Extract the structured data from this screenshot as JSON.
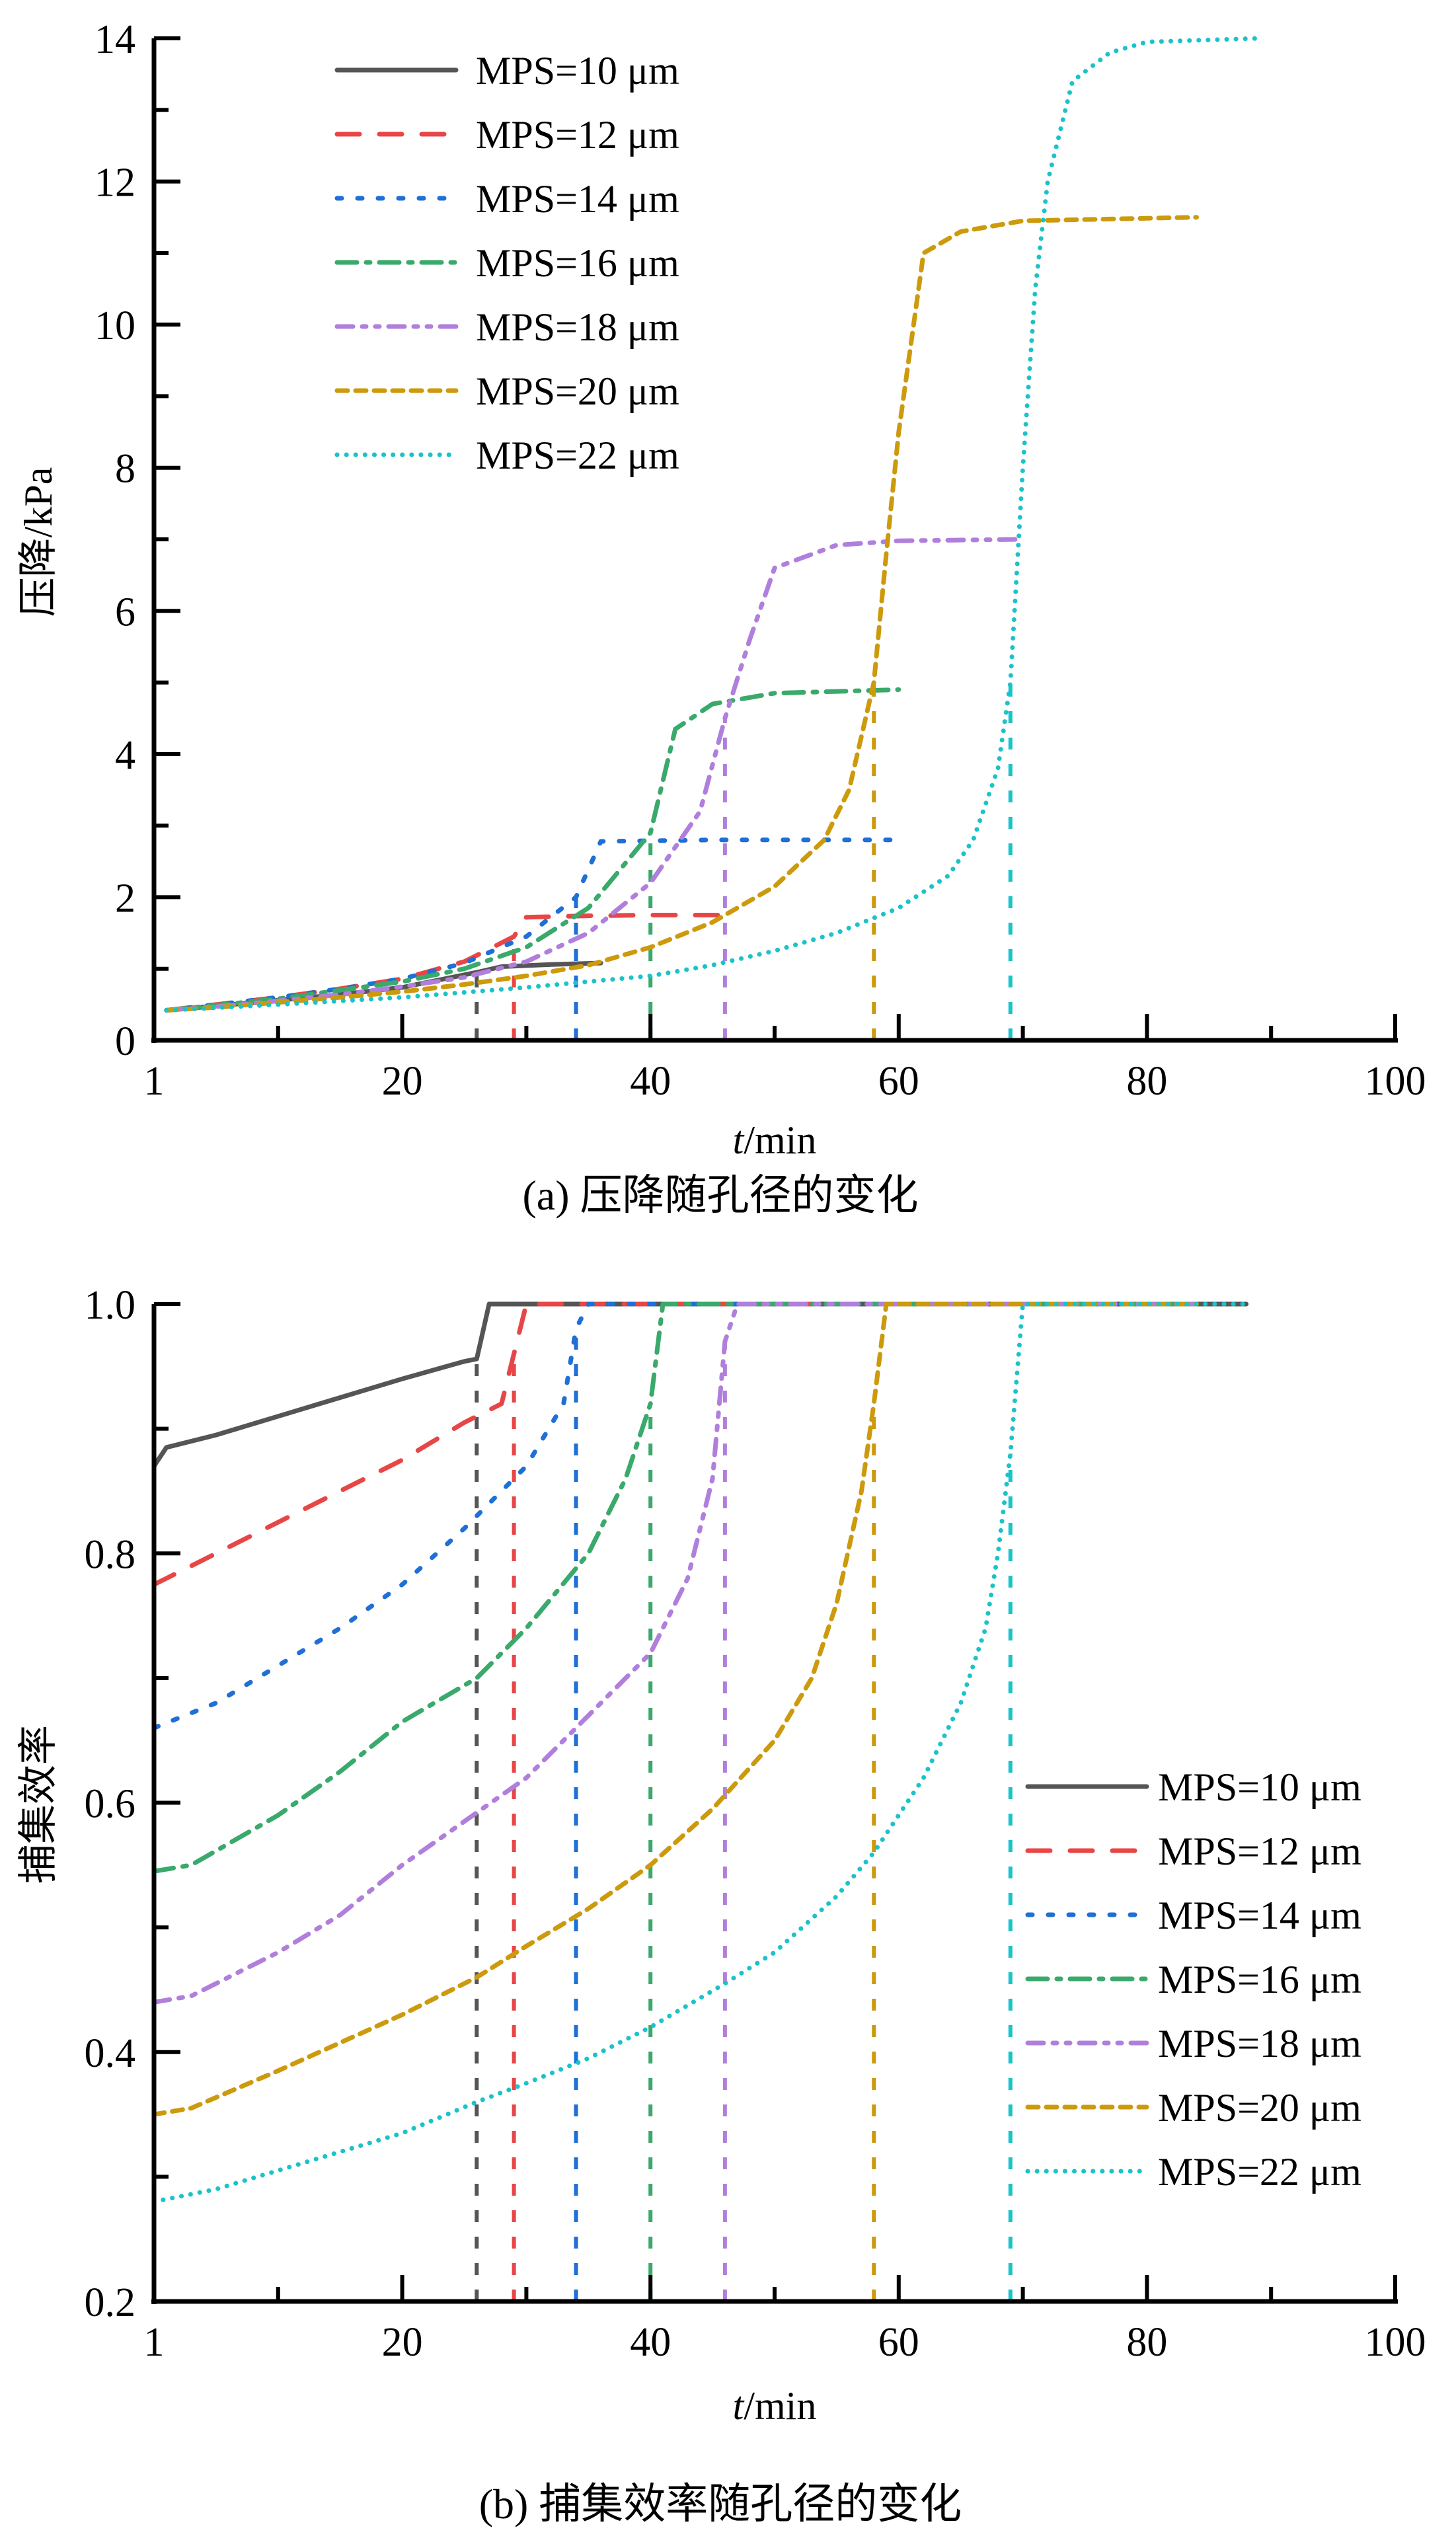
{
  "chart_data": [
    {
      "type": "line",
      "id": "a",
      "caption": "(a) 压降随孔径的变化",
      "xlabel_italic": "t",
      "xlabel_rest": "/min",
      "ylabel": "压降/kPa",
      "xlim": [
        0,
        100
      ],
      "ylim": [
        0,
        14
      ],
      "xticks": [
        {
          "v": 0,
          "label": "1"
        },
        {
          "v": 20,
          "label": "20"
        },
        {
          "v": 40,
          "label": "40"
        },
        {
          "v": 60,
          "label": "60"
        },
        {
          "v": 80,
          "label": "80"
        },
        {
          "v": 100,
          "label": "100"
        }
      ],
      "xminor": [
        10,
        30,
        50,
        70,
        90
      ],
      "yticks": [
        {
          "v": 0,
          "label": "0"
        },
        {
          "v": 2,
          "label": "2"
        },
        {
          "v": 4,
          "label": "4"
        },
        {
          "v": 6,
          "label": "6"
        },
        {
          "v": 8,
          "label": "8"
        },
        {
          "v": 10,
          "label": "10"
        },
        {
          "v": 12,
          "label": "12"
        },
        {
          "v": 14,
          "label": "14"
        }
      ],
      "yminor": [
        1,
        3,
        5,
        7,
        9,
        11,
        13
      ],
      "legend_position": "top-left",
      "series": [
        {
          "name": "MPS=10 μm",
          "color": "#555555",
          "dash": "none",
          "drop_at": 26,
          "points": [
            [
              1,
              0.42
            ],
            [
              5,
              0.48
            ],
            [
              10,
              0.56
            ],
            [
              15,
              0.64
            ],
            [
              20,
              0.74
            ],
            [
              24,
              0.88
            ],
            [
              26,
              0.95
            ],
            [
              28,
              1.03
            ],
            [
              32,
              1.06
            ],
            [
              36,
              1.08
            ]
          ]
        },
        {
          "name": "MPS=12 μm",
          "color": "#e84646",
          "dash": "long-dash",
          "drop_at": 29,
          "points": [
            [
              1,
              0.42
            ],
            [
              5,
              0.5
            ],
            [
              10,
              0.6
            ],
            [
              15,
              0.72
            ],
            [
              20,
              0.86
            ],
            [
              25,
              1.1
            ],
            [
              29,
              1.45
            ],
            [
              30,
              1.72
            ],
            [
              35,
              1.74
            ],
            [
              40,
              1.75
            ],
            [
              46,
              1.75
            ]
          ]
        },
        {
          "name": "MPS=14 μm",
          "color": "#1f6fd6",
          "dash": "dot-dash",
          "drop_at": 34,
          "points": [
            [
              1,
              0.42
            ],
            [
              5,
              0.5
            ],
            [
              10,
              0.6
            ],
            [
              15,
              0.72
            ],
            [
              20,
              0.86
            ],
            [
              25,
              1.08
            ],
            [
              30,
              1.45
            ],
            [
              34,
              2.0
            ],
            [
              36,
              2.78
            ],
            [
              45,
              2.8
            ],
            [
              60,
              2.8
            ]
          ]
        },
        {
          "name": "MPS=16 μm",
          "color": "#3aa96b",
          "dash": "dash-dot",
          "drop_at": 40,
          "points": [
            [
              1,
              0.42
            ],
            [
              5,
              0.49
            ],
            [
              10,
              0.58
            ],
            [
              15,
              0.7
            ],
            [
              20,
              0.82
            ],
            [
              25,
              1.0
            ],
            [
              30,
              1.3
            ],
            [
              35,
              1.85
            ],
            [
              40,
              2.9
            ],
            [
              42,
              4.35
            ],
            [
              45,
              4.7
            ],
            [
              50,
              4.85
            ],
            [
              60,
              4.9
            ]
          ]
        },
        {
          "name": "MPS=18 μm",
          "color": "#b07fdc",
          "dash": "dash-dot-dot",
          "drop_at": 46,
          "points": [
            [
              1,
              0.42
            ],
            [
              5,
              0.47
            ],
            [
              10,
              0.55
            ],
            [
              15,
              0.64
            ],
            [
              20,
              0.75
            ],
            [
              25,
              0.88
            ],
            [
              30,
              1.1
            ],
            [
              35,
              1.5
            ],
            [
              40,
              2.2
            ],
            [
              44,
              3.2
            ],
            [
              46,
              4.5
            ],
            [
              48,
              5.6
            ],
            [
              50,
              6.6
            ],
            [
              55,
              6.92
            ],
            [
              60,
              6.98
            ],
            [
              70,
              7.0
            ]
          ]
        },
        {
          "name": "MPS=20 μm",
          "color": "#cc9a0c",
          "dash": "short-dash",
          "drop_at": 58,
          "points": [
            [
              1,
              0.42
            ],
            [
              5,
              0.46
            ],
            [
              10,
              0.53
            ],
            [
              15,
              0.6
            ],
            [
              20,
              0.68
            ],
            [
              25,
              0.78
            ],
            [
              30,
              0.9
            ],
            [
              35,
              1.05
            ],
            [
              40,
              1.3
            ],
            [
              45,
              1.65
            ],
            [
              50,
              2.15
            ],
            [
              54,
              2.8
            ],
            [
              56,
              3.5
            ],
            [
              58,
              5.0
            ],
            [
              59,
              6.8
            ],
            [
              60,
              8.5
            ],
            [
              62,
              11.0
            ],
            [
              65,
              11.3
            ],
            [
              70,
              11.45
            ],
            [
              84,
              11.5
            ]
          ]
        },
        {
          "name": "MPS=22 μm",
          "color": "#19c3c9",
          "dash": "dot",
          "drop_at": 69,
          "points": [
            [
              1,
              0.42
            ],
            [
              10,
              0.5
            ],
            [
              20,
              0.6
            ],
            [
              30,
              0.74
            ],
            [
              40,
              0.9
            ],
            [
              45,
              1.05
            ],
            [
              50,
              1.25
            ],
            [
              55,
              1.5
            ],
            [
              60,
              1.85
            ],
            [
              64,
              2.3
            ],
            [
              66,
              2.8
            ],
            [
              68,
              3.8
            ],
            [
              69,
              5.0
            ],
            [
              70,
              8.0
            ],
            [
              71,
              10.5
            ],
            [
              72,
              12.0
            ],
            [
              74,
              13.4
            ],
            [
              77,
              13.8
            ],
            [
              80,
              13.95
            ],
            [
              89,
              14.0
            ]
          ]
        }
      ]
    },
    {
      "type": "line",
      "id": "b",
      "caption": "(b) 捕集效率随孔径的变化",
      "xlabel_italic": "t",
      "xlabel_rest": "/min",
      "ylabel": "捕集效率",
      "xlim": [
        0,
        100
      ],
      "ylim": [
        0.2,
        1.0
      ],
      "xticks": [
        {
          "v": 0,
          "label": "1"
        },
        {
          "v": 20,
          "label": "20"
        },
        {
          "v": 40,
          "label": "40"
        },
        {
          "v": 60,
          "label": "60"
        },
        {
          "v": 80,
          "label": "80"
        },
        {
          "v": 100,
          "label": "100"
        }
      ],
      "xminor": [
        10,
        30,
        50,
        70,
        90
      ],
      "yticks": [
        {
          "v": 0.2,
          "label": "0.2"
        },
        {
          "v": 0.4,
          "label": "0.4"
        },
        {
          "v": 0.6,
          "label": "0.6"
        },
        {
          "v": 0.8,
          "label": "0.8"
        },
        {
          "v": 1.0,
          "label": "1.0"
        }
      ],
      "yminor": [
        0.3,
        0.5,
        0.7,
        0.9
      ],
      "legend_position": "right-middle",
      "series": [
        {
          "name": "MPS=10 μm",
          "color": "#555555",
          "dash": "none",
          "drop_at": 26,
          "points": [
            [
              0,
              0.87
            ],
            [
              1,
              0.885
            ],
            [
              5,
              0.895
            ],
            [
              10,
              0.91
            ],
            [
              15,
              0.925
            ],
            [
              20,
              0.94
            ],
            [
              25,
              0.954
            ],
            [
              26,
              0.956
            ],
            [
              27,
              1.0
            ],
            [
              40,
              1.0
            ],
            [
              60,
              1.0
            ],
            [
              88,
              1.0
            ]
          ]
        },
        {
          "name": "MPS=12 μm",
          "color": "#e84646",
          "dash": "long-dash",
          "drop_at": 29,
          "points": [
            [
              0,
              0.775
            ],
            [
              5,
              0.8
            ],
            [
              10,
              0.825
            ],
            [
              15,
              0.85
            ],
            [
              20,
              0.875
            ],
            [
              25,
              0.905
            ],
            [
              28,
              0.92
            ],
            [
              29,
              0.96
            ],
            [
              30,
              1.0
            ],
            [
              46,
              1.0
            ],
            [
              60,
              1.0
            ],
            [
              84,
              1.0
            ]
          ]
        },
        {
          "name": "MPS=14 μm",
          "color": "#1f6fd6",
          "dash": "dot-dash",
          "drop_at": 34,
          "points": [
            [
              0,
              0.66
            ],
            [
              5,
              0.68
            ],
            [
              10,
              0.71
            ],
            [
              15,
              0.74
            ],
            [
              20,
              0.775
            ],
            [
              25,
              0.82
            ],
            [
              30,
              0.87
            ],
            [
              33,
              0.92
            ],
            [
              34,
              0.98
            ],
            [
              35,
              1.0
            ],
            [
              60,
              1.0
            ],
            [
              84,
              1.0
            ]
          ]
        },
        {
          "name": "MPS=16 μm",
          "color": "#3aa96b",
          "dash": "dash-dot",
          "drop_at": 40,
          "points": [
            [
              0,
              0.545
            ],
            [
              3,
              0.55
            ],
            [
              10,
              0.59
            ],
            [
              15,
              0.625
            ],
            [
              20,
              0.665
            ],
            [
              26,
              0.7
            ],
            [
              30,
              0.74
            ],
            [
              35,
              0.8
            ],
            [
              38,
              0.86
            ],
            [
              40,
              0.92
            ],
            [
              41,
              1.0
            ],
            [
              60,
              1.0
            ],
            [
              84,
              1.0
            ]
          ]
        },
        {
          "name": "MPS=18 μm",
          "color": "#b07fdc",
          "dash": "dash-dot-dot",
          "drop_at": 46,
          "points": [
            [
              0,
              0.44
            ],
            [
              3,
              0.445
            ],
            [
              10,
              0.48
            ],
            [
              15,
              0.51
            ],
            [
              20,
              0.55
            ],
            [
              25,
              0.585
            ],
            [
              30,
              0.62
            ],
            [
              35,
              0.67
            ],
            [
              40,
              0.72
            ],
            [
              43,
              0.78
            ],
            [
              45,
              0.86
            ],
            [
              46,
              0.97
            ],
            [
              47,
              1.0
            ],
            [
              60,
              1.0
            ],
            [
              84,
              1.0
            ]
          ]
        },
        {
          "name": "MPS=20 μm",
          "color": "#cc9a0c",
          "dash": "short-dash",
          "drop_at": 58,
          "points": [
            [
              0,
              0.35
            ],
            [
              3,
              0.355
            ],
            [
              10,
              0.385
            ],
            [
              20,
              0.43
            ],
            [
              26,
              0.46
            ],
            [
              30,
              0.485
            ],
            [
              35,
              0.515
            ],
            [
              40,
              0.55
            ],
            [
              45,
              0.595
            ],
            [
              50,
              0.65
            ],
            [
              53,
              0.7
            ],
            [
              55,
              0.76
            ],
            [
              57,
              0.85
            ],
            [
              58,
              0.92
            ],
            [
              59,
              1.0
            ],
            [
              70,
              1.0
            ],
            [
              84,
              1.0
            ]
          ]
        },
        {
          "name": "MPS=22 μm",
          "color": "#19c3c9",
          "dash": "dot",
          "drop_at": 69,
          "points": [
            [
              0,
              0.28
            ],
            [
              5,
              0.29
            ],
            [
              10,
              0.305
            ],
            [
              20,
              0.335
            ],
            [
              26,
              0.36
            ],
            [
              30,
              0.375
            ],
            [
              35,
              0.395
            ],
            [
              40,
              0.42
            ],
            [
              46,
              0.455
            ],
            [
              50,
              0.48
            ],
            [
              55,
              0.525
            ],
            [
              58,
              0.56
            ],
            [
              62,
              0.62
            ],
            [
              65,
              0.68
            ],
            [
              67,
              0.74
            ],
            [
              68,
              0.8
            ],
            [
              69,
              0.88
            ],
            [
              70,
              1.0
            ],
            [
              80,
              1.0
            ],
            [
              88,
              1.0
            ]
          ]
        }
      ]
    }
  ]
}
